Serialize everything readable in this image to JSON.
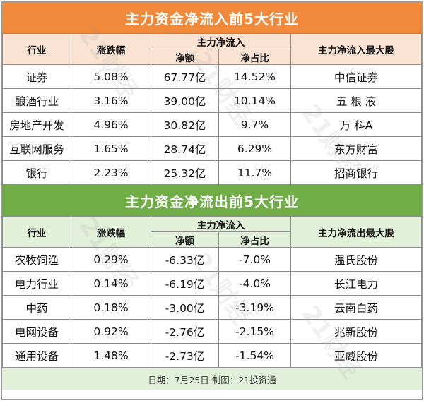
{
  "inflow": {
    "title": "主力资金净流入前5大行业",
    "headers": {
      "industry": "行业",
      "change": "涨跌幅",
      "netflow_group": "主力净流入",
      "amount": "净额",
      "ratio": "净占比",
      "top_stock": "主力净流入最大股"
    },
    "rows": [
      {
        "industry": "证券",
        "change": "5.08%",
        "amount": "67.77亿",
        "ratio": "14.52%",
        "stock": "中信证券"
      },
      {
        "industry": "酿酒行业",
        "change": "3.16%",
        "amount": "39.00亿",
        "ratio": "10.14%",
        "stock": "五 粮 液"
      },
      {
        "industry": "房地产开发",
        "change": "4.96%",
        "amount": "30.82亿",
        "ratio": "9.7%",
        "stock": "万 科A"
      },
      {
        "industry": "互联网服务",
        "change": "1.65%",
        "amount": "28.74亿",
        "ratio": "6.29%",
        "stock": "东方财富"
      },
      {
        "industry": "银行",
        "change": "2.23%",
        "amount": "25.32亿",
        "ratio": "11.7%",
        "stock": "招商银行"
      }
    ]
  },
  "outflow": {
    "title": "主力资金净流出前5大行业",
    "headers": {
      "industry": "行业",
      "change": "涨跌幅",
      "netflow_group": "主力净流入",
      "amount": "净额",
      "ratio": "净占比",
      "top_stock": "主力净流出最大股"
    },
    "rows": [
      {
        "industry": "农牧饲渔",
        "change": "0.29%",
        "amount": "-6.33亿",
        "ratio": "-7.0%",
        "stock": "温氏股份"
      },
      {
        "industry": "电力行业",
        "change": "0.14%",
        "amount": "-6.19亿",
        "ratio": "-4.0%",
        "stock": "长江电力"
      },
      {
        "industry": "中药",
        "change": "0.18%",
        "amount": "-3.00亿",
        "ratio": "-3.19%",
        "stock": "云南白药"
      },
      {
        "industry": "电网设备",
        "change": "0.92%",
        "amount": "-2.76亿",
        "ratio": "-2.15%",
        "stock": "兆新股份"
      },
      {
        "industry": "通用设备",
        "change": "1.48%",
        "amount": "-2.73亿",
        "ratio": "-1.54%",
        "stock": "亚威股份"
      }
    ]
  },
  "footer": "日期：7月25日  制图：21投资通",
  "watermark": "21财经",
  "colors": {
    "orange_banner": "#f08a3a",
    "green_banner": "#70ad47",
    "orange_header": "#fbe3d3",
    "green_header": "#e2efd9"
  }
}
